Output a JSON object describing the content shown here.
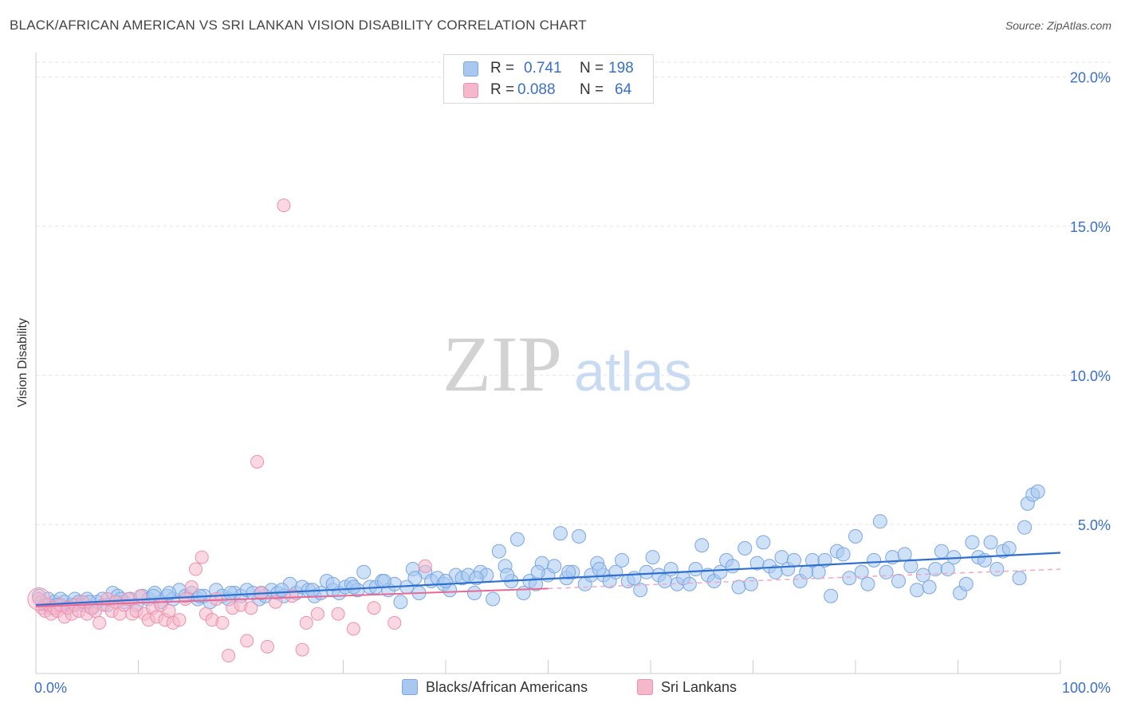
{
  "header": {
    "title": "BLACK/AFRICAN AMERICAN VS SRI LANKAN VISION DISABILITY CORRELATION CHART",
    "source": "Source: ZipAtlas.com"
  },
  "watermark": {
    "zip": "ZIP",
    "atlas": "atlas"
  },
  "legend": {
    "rows": [
      {
        "r_label": "R =",
        "r_value": "0.741",
        "n_label": "N =",
        "n_value": "198",
        "color": "#a8c8f0"
      },
      {
        "r_label": "R =",
        "r_value": "0.088",
        "n_label": "N =",
        "n_value": "64",
        "color": "#f5b8cb"
      }
    ]
  },
  "chart_data": {
    "type": "scatter",
    "title": "BLACK/AFRICAN AMERICAN VS SRI LANKAN VISION DISABILITY CORRELATION CHART",
    "xlabel": "",
    "ylabel": "Vision Disability",
    "xlim": [
      0,
      100
    ],
    "ylim": [
      0,
      20.5
    ],
    "x_tick_labels": [
      "0.0%",
      "100.0%"
    ],
    "y_ticks": [
      5,
      10,
      15,
      20
    ],
    "y_tick_labels": [
      "5.0%",
      "10.0%",
      "15.0%",
      "20.0%"
    ],
    "grid": true,
    "legend_position": "bottom",
    "series": [
      {
        "name": "Blacks/African Americans",
        "color": "#7aa6e3",
        "fill": "#a8c8f0",
        "trend": {
          "x": [
            0,
            100
          ],
          "y": [
            2.3,
            4.05
          ]
        },
        "points": [
          [
            0.3,
            2.6
          ],
          [
            0.6,
            2.4
          ],
          [
            0.9,
            2.3
          ],
          [
            1.2,
            2.5
          ],
          [
            1.5,
            2.2
          ],
          [
            1.8,
            2.4
          ],
          [
            2.1,
            2.3
          ],
          [
            2.4,
            2.5
          ],
          [
            2.8,
            2.4
          ],
          [
            3.1,
            2.2
          ],
          [
            3.5,
            2.3
          ],
          [
            3.8,
            2.5
          ],
          [
            4.2,
            2.4
          ],
          [
            4.6,
            2.3
          ],
          [
            5.0,
            2.5
          ],
          [
            5.5,
            2.2
          ],
          [
            6.0,
            2.4
          ],
          [
            6.5,
            2.5
          ],
          [
            7.0,
            2.3
          ],
          [
            7.5,
            2.7
          ],
          [
            8.0,
            2.6
          ],
          [
            8.6,
            2.4
          ],
          [
            9.2,
            2.5
          ],
          [
            9.8,
            2.3
          ],
          [
            10.4,
            2.6
          ],
          [
            11.0,
            2.5
          ],
          [
            11.6,
            2.7
          ],
          [
            12.2,
            2.4
          ],
          [
            12.8,
            2.6
          ],
          [
            13.4,
            2.5
          ],
          [
            14.0,
            2.8
          ],
          [
            14.6,
            2.6
          ],
          [
            15.2,
            2.7
          ],
          [
            15.8,
            2.5
          ],
          [
            16.4,
            2.6
          ],
          [
            17.0,
            2.4
          ],
          [
            17.6,
            2.8
          ],
          [
            18.2,
            2.6
          ],
          [
            18.8,
            2.5
          ],
          [
            19.4,
            2.7
          ],
          [
            20.0,
            2.6
          ],
          [
            20.6,
            2.8
          ],
          [
            21.2,
            2.7
          ],
          [
            21.8,
            2.5
          ],
          [
            22.4,
            2.6
          ],
          [
            23.0,
            2.8
          ],
          [
            23.6,
            2.7
          ],
          [
            24.2,
            2.6
          ],
          [
            24.8,
            3.0
          ],
          [
            25.4,
            2.7
          ],
          [
            26.0,
            2.9
          ],
          [
            26.6,
            2.8
          ],
          [
            27.2,
            2.6
          ],
          [
            27.8,
            2.7
          ],
          [
            28.4,
            3.1
          ],
          [
            29.0,
            2.8
          ],
          [
            29.6,
            2.7
          ],
          [
            30.2,
            2.9
          ],
          [
            30.8,
            3.0
          ],
          [
            31.4,
            2.8
          ],
          [
            32.0,
            3.4
          ],
          [
            32.6,
            2.9
          ],
          [
            33.2,
            2.9
          ],
          [
            33.8,
            3.1
          ],
          [
            34.4,
            2.8
          ],
          [
            35.0,
            3.0
          ],
          [
            35.6,
            2.4
          ],
          [
            36.2,
            2.9
          ],
          [
            36.8,
            3.5
          ],
          [
            37.4,
            2.7
          ],
          [
            38.0,
            3.4
          ],
          [
            38.6,
            3.1
          ],
          [
            39.2,
            3.2
          ],
          [
            39.8,
            3.0
          ],
          [
            40.4,
            2.8
          ],
          [
            41.0,
            3.3
          ],
          [
            41.6,
            3.2
          ],
          [
            42.2,
            3.3
          ],
          [
            42.8,
            2.7
          ],
          [
            43.4,
            3.4
          ],
          [
            44.0,
            3.3
          ],
          [
            44.6,
            2.5
          ],
          [
            45.2,
            4.1
          ],
          [
            45.8,
            3.6
          ],
          [
            46.4,
            3.1
          ],
          [
            47.0,
            4.5
          ],
          [
            47.6,
            2.7
          ],
          [
            48.2,
            3.1
          ],
          [
            48.8,
            3.0
          ],
          [
            49.4,
            3.7
          ],
          [
            50.0,
            3.3
          ],
          [
            50.6,
            3.6
          ],
          [
            51.2,
            4.7
          ],
          [
            51.8,
            3.2
          ],
          [
            52.4,
            3.4
          ],
          [
            53.0,
            4.6
          ],
          [
            53.6,
            3.0
          ],
          [
            54.2,
            3.3
          ],
          [
            54.8,
            3.7
          ],
          [
            55.4,
            3.3
          ],
          [
            56.0,
            3.1
          ],
          [
            56.6,
            3.4
          ],
          [
            57.2,
            3.8
          ],
          [
            57.8,
            3.1
          ],
          [
            58.4,
            3.2
          ],
          [
            59.0,
            2.8
          ],
          [
            59.6,
            3.4
          ],
          [
            60.2,
            3.9
          ],
          [
            60.8,
            3.3
          ],
          [
            61.4,
            3.1
          ],
          [
            62.0,
            3.5
          ],
          [
            62.6,
            3.0
          ],
          [
            63.2,
            3.2
          ],
          [
            63.8,
            3.0
          ],
          [
            64.4,
            3.5
          ],
          [
            65.0,
            4.3
          ],
          [
            65.6,
            3.3
          ],
          [
            66.2,
            3.1
          ],
          [
            66.8,
            3.4
          ],
          [
            67.4,
            3.8
          ],
          [
            68.0,
            3.6
          ],
          [
            68.6,
            2.9
          ],
          [
            69.2,
            4.2
          ],
          [
            69.8,
            3.0
          ],
          [
            70.4,
            3.7
          ],
          [
            71.0,
            4.4
          ],
          [
            71.6,
            3.6
          ],
          [
            72.2,
            3.4
          ],
          [
            72.8,
            3.9
          ],
          [
            73.4,
            3.5
          ],
          [
            74.0,
            3.8
          ],
          [
            74.6,
            3.1
          ],
          [
            75.2,
            3.4
          ],
          [
            75.8,
            3.8
          ],
          [
            76.4,
            3.4
          ],
          [
            77.0,
            3.8
          ],
          [
            77.6,
            2.6
          ],
          [
            78.2,
            4.1
          ],
          [
            78.8,
            4.0
          ],
          [
            79.4,
            3.2
          ],
          [
            80.0,
            4.6
          ],
          [
            80.6,
            3.4
          ],
          [
            81.2,
            3.0
          ],
          [
            81.8,
            3.8
          ],
          [
            82.4,
            5.1
          ],
          [
            83.0,
            3.4
          ],
          [
            83.6,
            3.9
          ],
          [
            84.2,
            3.1
          ],
          [
            84.8,
            4.0
          ],
          [
            85.4,
            3.6
          ],
          [
            86.0,
            2.8
          ],
          [
            86.6,
            3.3
          ],
          [
            87.2,
            2.9
          ],
          [
            87.8,
            3.5
          ],
          [
            88.4,
            4.1
          ],
          [
            89.0,
            3.5
          ],
          [
            89.6,
            3.9
          ],
          [
            90.2,
            2.7
          ],
          [
            90.8,
            3.0
          ],
          [
            91.4,
            4.4
          ],
          [
            92.0,
            3.9
          ],
          [
            92.6,
            3.8
          ],
          [
            93.2,
            4.4
          ],
          [
            93.8,
            3.5
          ],
          [
            94.4,
            4.1
          ],
          [
            95.0,
            4.2
          ],
          [
            96.0,
            3.2
          ],
          [
            96.5,
            4.9
          ],
          [
            96.8,
            5.7
          ],
          [
            97.3,
            6.0
          ],
          [
            97.8,
            6.1
          ],
          [
            2.0,
            2.3
          ],
          [
            5.2,
            2.4
          ],
          [
            8.3,
            2.5
          ],
          [
            11.5,
            2.6
          ],
          [
            13.0,
            2.7
          ],
          [
            16.0,
            2.6
          ],
          [
            19.0,
            2.7
          ],
          [
            22.0,
            2.7
          ],
          [
            24.0,
            2.8
          ],
          [
            27.0,
            2.8
          ],
          [
            29.0,
            3.0
          ],
          [
            31.0,
            2.9
          ],
          [
            34.0,
            3.1
          ],
          [
            37.0,
            3.2
          ],
          [
            40.0,
            3.1
          ],
          [
            43.0,
            3.2
          ],
          [
            46.0,
            3.3
          ],
          [
            49.0,
            3.4
          ],
          [
            52.0,
            3.4
          ],
          [
            55.0,
            3.5
          ]
        ]
      },
      {
        "name": "Sri Lankans",
        "color": "#ec8fb0",
        "fill": "#f5b8cb",
        "trend": {
          "x": [
            0,
            50
          ],
          "y": [
            2.25,
            2.85
          ]
        },
        "trend_dashed": {
          "x": [
            50,
            100
          ],
          "y": [
            2.85,
            3.5
          ]
        },
        "points": [
          [
            0.3,
            2.5
          ],
          [
            0.6,
            2.2
          ],
          [
            0.9,
            2.1
          ],
          [
            1.2,
            2.3
          ],
          [
            1.5,
            2.0
          ],
          [
            1.8,
            2.2
          ],
          [
            2.1,
            2.1
          ],
          [
            2.4,
            2.3
          ],
          [
            2.8,
            1.9
          ],
          [
            3.1,
            2.2
          ],
          [
            3.5,
            2.0
          ],
          [
            3.8,
            2.3
          ],
          [
            4.2,
            2.1
          ],
          [
            4.6,
            2.4
          ],
          [
            5.0,
            2.0
          ],
          [
            5.4,
            2.2
          ],
          [
            5.8,
            2.1
          ],
          [
            6.2,
            1.7
          ],
          [
            6.6,
            2.3
          ],
          [
            7.0,
            2.5
          ],
          [
            7.4,
            2.1
          ],
          [
            7.8,
            2.4
          ],
          [
            8.2,
            2.0
          ],
          [
            8.6,
            2.3
          ],
          [
            9.0,
            2.5
          ],
          [
            9.4,
            2.0
          ],
          [
            9.8,
            2.1
          ],
          [
            10.2,
            2.6
          ],
          [
            10.6,
            2.0
          ],
          [
            11.0,
            1.8
          ],
          [
            11.4,
            2.2
          ],
          [
            11.8,
            1.9
          ],
          [
            12.2,
            2.3
          ],
          [
            12.6,
            1.8
          ],
          [
            13.0,
            2.1
          ],
          [
            13.4,
            1.7
          ],
          [
            14.0,
            1.8
          ],
          [
            14.6,
            2.5
          ],
          [
            15.2,
            2.9
          ],
          [
            15.6,
            3.5
          ],
          [
            16.2,
            3.9
          ],
          [
            16.6,
            2.0
          ],
          [
            17.2,
            1.8
          ],
          [
            17.6,
            2.5
          ],
          [
            18.2,
            1.7
          ],
          [
            18.8,
            0.6
          ],
          [
            19.2,
            2.2
          ],
          [
            20.0,
            2.3
          ],
          [
            20.6,
            1.1
          ],
          [
            21.0,
            2.2
          ],
          [
            21.6,
            7.1
          ],
          [
            22.0,
            2.7
          ],
          [
            22.6,
            0.9
          ],
          [
            23.4,
            2.4
          ],
          [
            24.2,
            15.7
          ],
          [
            25.0,
            2.6
          ],
          [
            26.0,
            0.8
          ],
          [
            26.4,
            1.7
          ],
          [
            27.5,
            2.0
          ],
          [
            29.5,
            2.0
          ],
          [
            31.0,
            1.5
          ],
          [
            33.0,
            2.2
          ],
          [
            35.0,
            1.7
          ],
          [
            38.0,
            3.6
          ]
        ]
      }
    ]
  },
  "bottom_legend": {
    "items": [
      {
        "label": "Blacks/African Americans",
        "color": "#a8c8f0"
      },
      {
        "label": "Sri Lankans",
        "color": "#f5b8cb"
      }
    ]
  }
}
